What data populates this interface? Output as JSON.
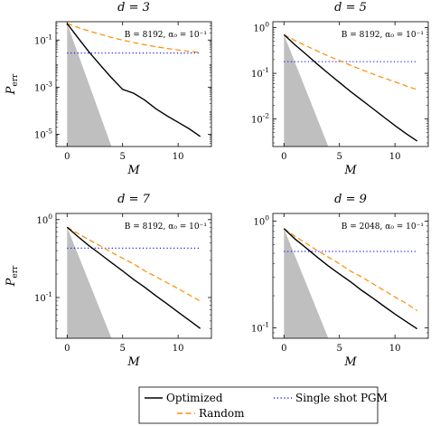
{
  "chart_data": [
    {
      "type": "line",
      "title": "d = 3",
      "xlabel": "M",
      "ylabel": "P_err",
      "yscale": "log",
      "xlim": [
        -1,
        13
      ],
      "ylim": [
        3e-06,
        0.6
      ],
      "xticks": [
        "0",
        "5",
        "10"
      ],
      "yticks": [
        {
          "value": 0.1,
          "label": "10",
          "exp": "-1"
        },
        {
          "value": 0.001,
          "label": "10",
          "exp": "-3"
        },
        {
          "value": 1e-05,
          "label": "10",
          "exp": "-5"
        }
      ],
      "annotation": "B = 8192, α₀ = 10⁻¹",
      "shaded_region": {
        "x": [
          0,
          0,
          4
        ],
        "y": [
          0.5,
          3e-06,
          3e-06
        ]
      },
      "series": [
        {
          "key": "optimized",
          "x": [
            0,
            1,
            2,
            3,
            4,
            5,
            6,
            7,
            8,
            9,
            10,
            11,
            12
          ],
          "y": [
            0.5,
            0.12,
            0.03,
            0.0085,
            0.0025,
            0.0008,
            0.00055,
            0.00028,
            0.00012,
            6e-05,
            3.2e-05,
            1.7e-05,
            8e-06
          ]
        },
        {
          "key": "pgm",
          "x": [
            0,
            12
          ],
          "y": [
            0.028,
            0.028
          ]
        },
        {
          "key": "random",
          "x": [
            0,
            1,
            2,
            3,
            4,
            5,
            6,
            7,
            8,
            9,
            10,
            11,
            12
          ],
          "y": [
            0.5,
            0.34,
            0.24,
            0.175,
            0.13,
            0.1,
            0.078,
            0.063,
            0.052,
            0.044,
            0.038,
            0.033,
            0.03
          ]
        }
      ]
    },
    {
      "type": "line",
      "title": "d = 5",
      "xlabel": "M",
      "ylabel": "",
      "yscale": "log",
      "xlim": [
        -1,
        13
      ],
      "ylim": [
        0.0025,
        1.35
      ],
      "xticks": [
        "0",
        "5",
        "10"
      ],
      "yticks": [
        {
          "value": 1,
          "label": "10",
          "exp": "0"
        },
        {
          "value": 0.1,
          "label": "10",
          "exp": "-1"
        },
        {
          "value": 0.01,
          "label": "10",
          "exp": "-2"
        }
      ],
      "annotation": "B = 8192, α₀ = 10⁻¹",
      "shaded_region": {
        "x": [
          0,
          0,
          4
        ],
        "y": [
          0.7,
          0.0025,
          0.0025
        ]
      },
      "series": [
        {
          "key": "optimized",
          "x": [
            0,
            1,
            2,
            3,
            4,
            5,
            6,
            7,
            8,
            9,
            10,
            11,
            12
          ],
          "y": [
            0.7,
            0.42,
            0.26,
            0.16,
            0.1,
            0.063,
            0.04,
            0.026,
            0.017,
            0.011,
            0.0072,
            0.0048,
            0.0033
          ]
        },
        {
          "key": "pgm",
          "x": [
            0,
            12
          ],
          "y": [
            0.18,
            0.18
          ]
        },
        {
          "key": "random",
          "x": [
            0,
            1,
            2,
            3,
            4,
            5,
            6,
            7,
            8,
            9,
            10,
            11,
            12
          ],
          "y": [
            0.7,
            0.52,
            0.4,
            0.31,
            0.24,
            0.19,
            0.15,
            0.12,
            0.097,
            0.079,
            0.065,
            0.053,
            0.044
          ]
        }
      ]
    },
    {
      "type": "line",
      "title": "d = 7",
      "xlabel": "M",
      "ylabel": "P_err",
      "yscale": "log",
      "xlim": [
        -1,
        13
      ],
      "ylim": [
        0.03,
        1.2
      ],
      "xticks": [
        "0",
        "5",
        "10"
      ],
      "yticks": [
        {
          "value": 1,
          "label": "10",
          "exp": "0"
        },
        {
          "value": 0.1,
          "label": "10",
          "exp": "-1"
        }
      ],
      "annotation": "B = 8192, α₀ = 10⁻¹",
      "shaded_region": {
        "x": [
          0,
          0,
          4
        ],
        "y": [
          0.8,
          0.03,
          0.03
        ]
      },
      "series": [
        {
          "key": "optimized",
          "x": [
            0,
            1,
            2,
            3,
            4,
            5,
            6,
            7,
            8,
            9,
            10,
            11,
            12
          ],
          "y": [
            0.8,
            0.6,
            0.46,
            0.36,
            0.28,
            0.22,
            0.17,
            0.135,
            0.105,
            0.083,
            0.065,
            0.051,
            0.04
          ]
        },
        {
          "key": "pgm",
          "x": [
            0,
            12
          ],
          "y": [
            0.43,
            0.43
          ]
        },
        {
          "key": "random",
          "x": [
            0,
            1,
            2,
            3,
            4,
            5,
            6,
            7,
            8,
            9,
            10,
            11,
            12
          ],
          "y": [
            0.8,
            0.66,
            0.55,
            0.46,
            0.38,
            0.32,
            0.27,
            0.22,
            0.185,
            0.155,
            0.13,
            0.108,
            0.09
          ]
        }
      ]
    },
    {
      "type": "line",
      "title": "d = 9",
      "xlabel": "M",
      "ylabel": "",
      "yscale": "log",
      "xlim": [
        -1,
        13
      ],
      "ylim": [
        0.08,
        1.18
      ],
      "xticks": [
        "0",
        "5",
        "10"
      ],
      "yticks": [
        {
          "value": 1,
          "label": "10",
          "exp": "0"
        },
        {
          "value": 0.1,
          "label": "10",
          "exp": "-1"
        }
      ],
      "annotation": "B = 2048, α₀ = 10⁻¹",
      "shaded_region": {
        "x": [
          0,
          0,
          4
        ],
        "y": [
          0.85,
          0.08,
          0.08
        ]
      },
      "series": [
        {
          "key": "optimized",
          "x": [
            0,
            1,
            2,
            3,
            4,
            5,
            6,
            7,
            8,
            9,
            10,
            11,
            12
          ],
          "y": [
            0.85,
            0.68,
            0.56,
            0.46,
            0.38,
            0.32,
            0.27,
            0.225,
            0.19,
            0.16,
            0.135,
            0.115,
            0.098
          ]
        },
        {
          "key": "pgm",
          "x": [
            0,
            12
          ],
          "y": [
            0.52,
            0.52
          ]
        },
        {
          "key": "random",
          "x": [
            0,
            1,
            2,
            3,
            4,
            5,
            6,
            7,
            8,
            9,
            10,
            11,
            12
          ],
          "y": [
            0.85,
            0.72,
            0.62,
            0.53,
            0.46,
            0.4,
            0.34,
            0.3,
            0.26,
            0.225,
            0.195,
            0.17,
            0.145
          ]
        }
      ]
    }
  ],
  "legend": {
    "position": "bottom-center",
    "entries": [
      {
        "key": "optimized",
        "label": "Optimized",
        "color": "#000000",
        "dash": "solid"
      },
      {
        "key": "pgm",
        "label": "Single shot PGM",
        "color": "#1a1aff",
        "dash": "dotted"
      },
      {
        "key": "random",
        "label": "Random",
        "color": "#ff8c00",
        "dash": "dashed"
      }
    ]
  },
  "colors": {
    "shade": "#bfbfbf"
  }
}
